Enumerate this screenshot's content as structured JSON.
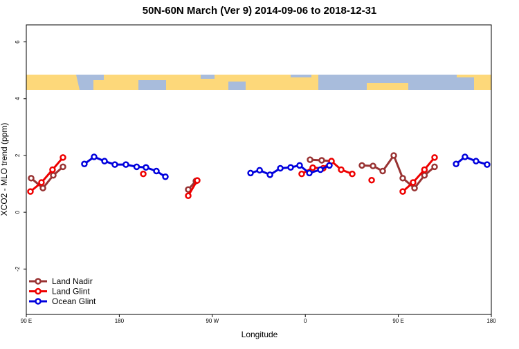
{
  "chart_data": {
    "type": "line",
    "title": "50N-60N March (Ver 9)   2014-09-06 to 2018-12-31",
    "x_label": "Longitude",
    "y_label": "XCO2 - MLO trend (ppm)",
    "xlim": [
      90,
      540
    ],
    "ylim": [
      -3.6,
      6.6
    ],
    "xticks": [
      {
        "value": 90,
        "label": "90 E"
      },
      180,
      {
        "value": 270,
        "label": "90 W"
      },
      {
        "value": 360,
        "label": "0"
      },
      {
        "value": 450,
        "label": "90 E"
      },
      {
        "value": 540,
        "label": "180"
      }
    ],
    "yticks": [
      -2,
      0,
      2,
      4,
      6
    ],
    "legend": "bottom-left",
    "series": [
      {
        "name": "Land Nadir",
        "color": "#993333",
        "x": [
          94.7,
          106.1,
          116.1,
          125.5,
          null,
          246.7,
          254.1,
          null,
          364.6,
          375.9,
          385.3,
          null,
          414.8,
          425.5,
          434.9,
          445.6,
          454.3,
          465.7,
          475.3,
          485.1
        ],
        "values": [
          1.2,
          0.85,
          1.3,
          1.6,
          null,
          0.8,
          1.1,
          null,
          1.85,
          1.83,
          1.8,
          null,
          1.65,
          1.63,
          1.45,
          2.0,
          1.2,
          0.85,
          1.3,
          1.6
        ]
      },
      {
        "name": "Land Glint",
        "color": "#ee0000",
        "x": [
          94,
          104.7,
          115.4,
          125.5,
          null,
          203.2,
          null,
          246.7,
          255.4,
          null,
          356.5,
          367.2,
          377.3,
          385.3,
          394.7,
          405.4,
          null,
          424.2,
          null,
          454.3,
          464.3,
          475.3,
          485.1
        ],
        "values": [
          0.73,
          1.05,
          1.5,
          1.93,
          null,
          1.35,
          null,
          0.58,
          1.12,
          null,
          1.35,
          1.57,
          1.55,
          1.8,
          1.5,
          1.35,
          null,
          1.13,
          null,
          0.73,
          1.05,
          1.5,
          1.93
        ]
      },
      {
        "name": "Ocean Glint",
        "color": "#0000dd",
        "x": [
          146.2,
          155.6,
          165.7,
          175.7,
          186.4,
          196.8,
          205.8,
          215.9,
          224.6,
          null,
          307,
          315.8,
          325.8,
          335.8,
          345.8,
          354.5,
          363.9,
          374.6,
          383.3,
          null,
          505.9,
          514.5,
          525.2,
          535.9
        ],
        "values": [
          1.7,
          1.95,
          1.8,
          1.68,
          1.68,
          1.6,
          1.58,
          1.45,
          1.25,
          null,
          1.38,
          1.48,
          1.32,
          1.55,
          1.58,
          1.65,
          1.38,
          1.5,
          1.65,
          null,
          1.7,
          1.95,
          1.8,
          1.68
        ]
      }
    ]
  }
}
